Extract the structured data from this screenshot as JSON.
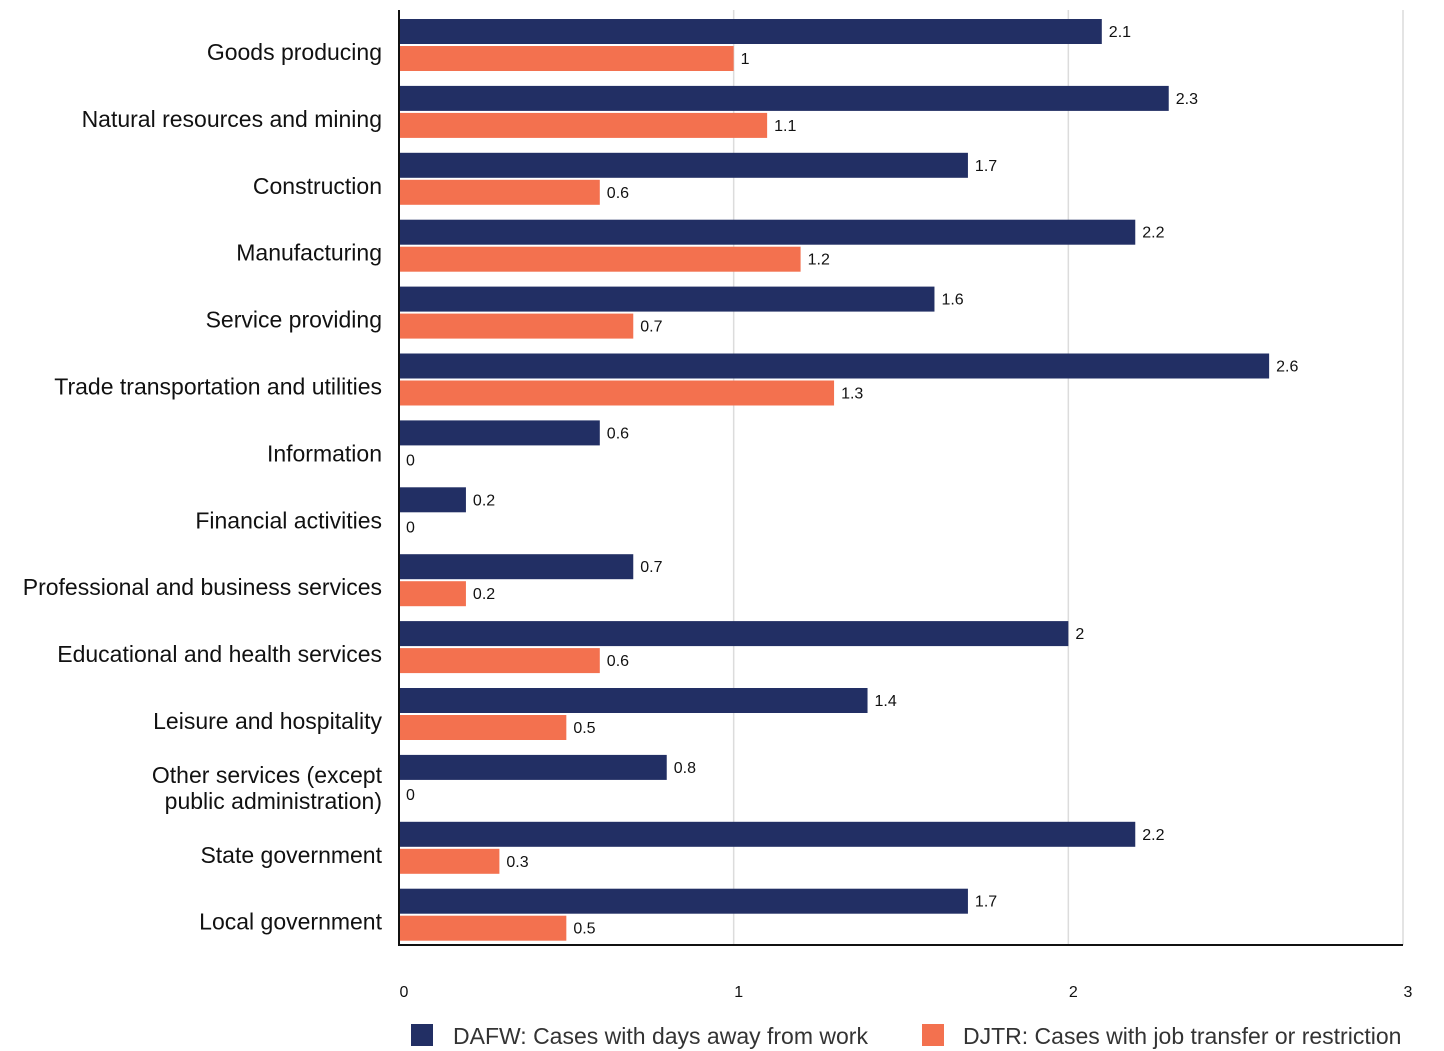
{
  "chart_data": {
    "type": "bar",
    "orientation": "horizontal",
    "categories": [
      [
        "Goods producing"
      ],
      [
        "Natural resources and mining"
      ],
      [
        "Construction"
      ],
      [
        "Manufacturing"
      ],
      [
        "Service providing"
      ],
      [
        "Trade transportation and utilities"
      ],
      [
        "Information"
      ],
      [
        "Financial activities"
      ],
      [
        "Professional and business services"
      ],
      [
        "Educational and health services"
      ],
      [
        "Leisure and hospitality"
      ],
      [
        "Other services (except",
        "public administration)"
      ],
      [
        "State government"
      ],
      [
        "Local government"
      ]
    ],
    "series": [
      {
        "name": "DAFW: Cases with days away from work",
        "color": "#222f64",
        "values": [
          2.1,
          2.3,
          1.7,
          2.2,
          1.6,
          2.6,
          0.6,
          0.2,
          0.7,
          2,
          1.4,
          0.8,
          2.2,
          1.7
        ]
      },
      {
        "name": "DJTR: Cases with job transfer or restriction",
        "color": "#f3714f",
        "values": [
          1,
          1.1,
          0.6,
          1.2,
          0.7,
          1.3,
          0,
          0,
          0.2,
          0.6,
          0.5,
          0,
          0.3,
          0.5
        ]
      }
    ],
    "xlim": [
      0,
      3
    ],
    "xticks": [
      0,
      1,
      2,
      3
    ],
    "grid": true,
    "legend_position": "bottom"
  }
}
